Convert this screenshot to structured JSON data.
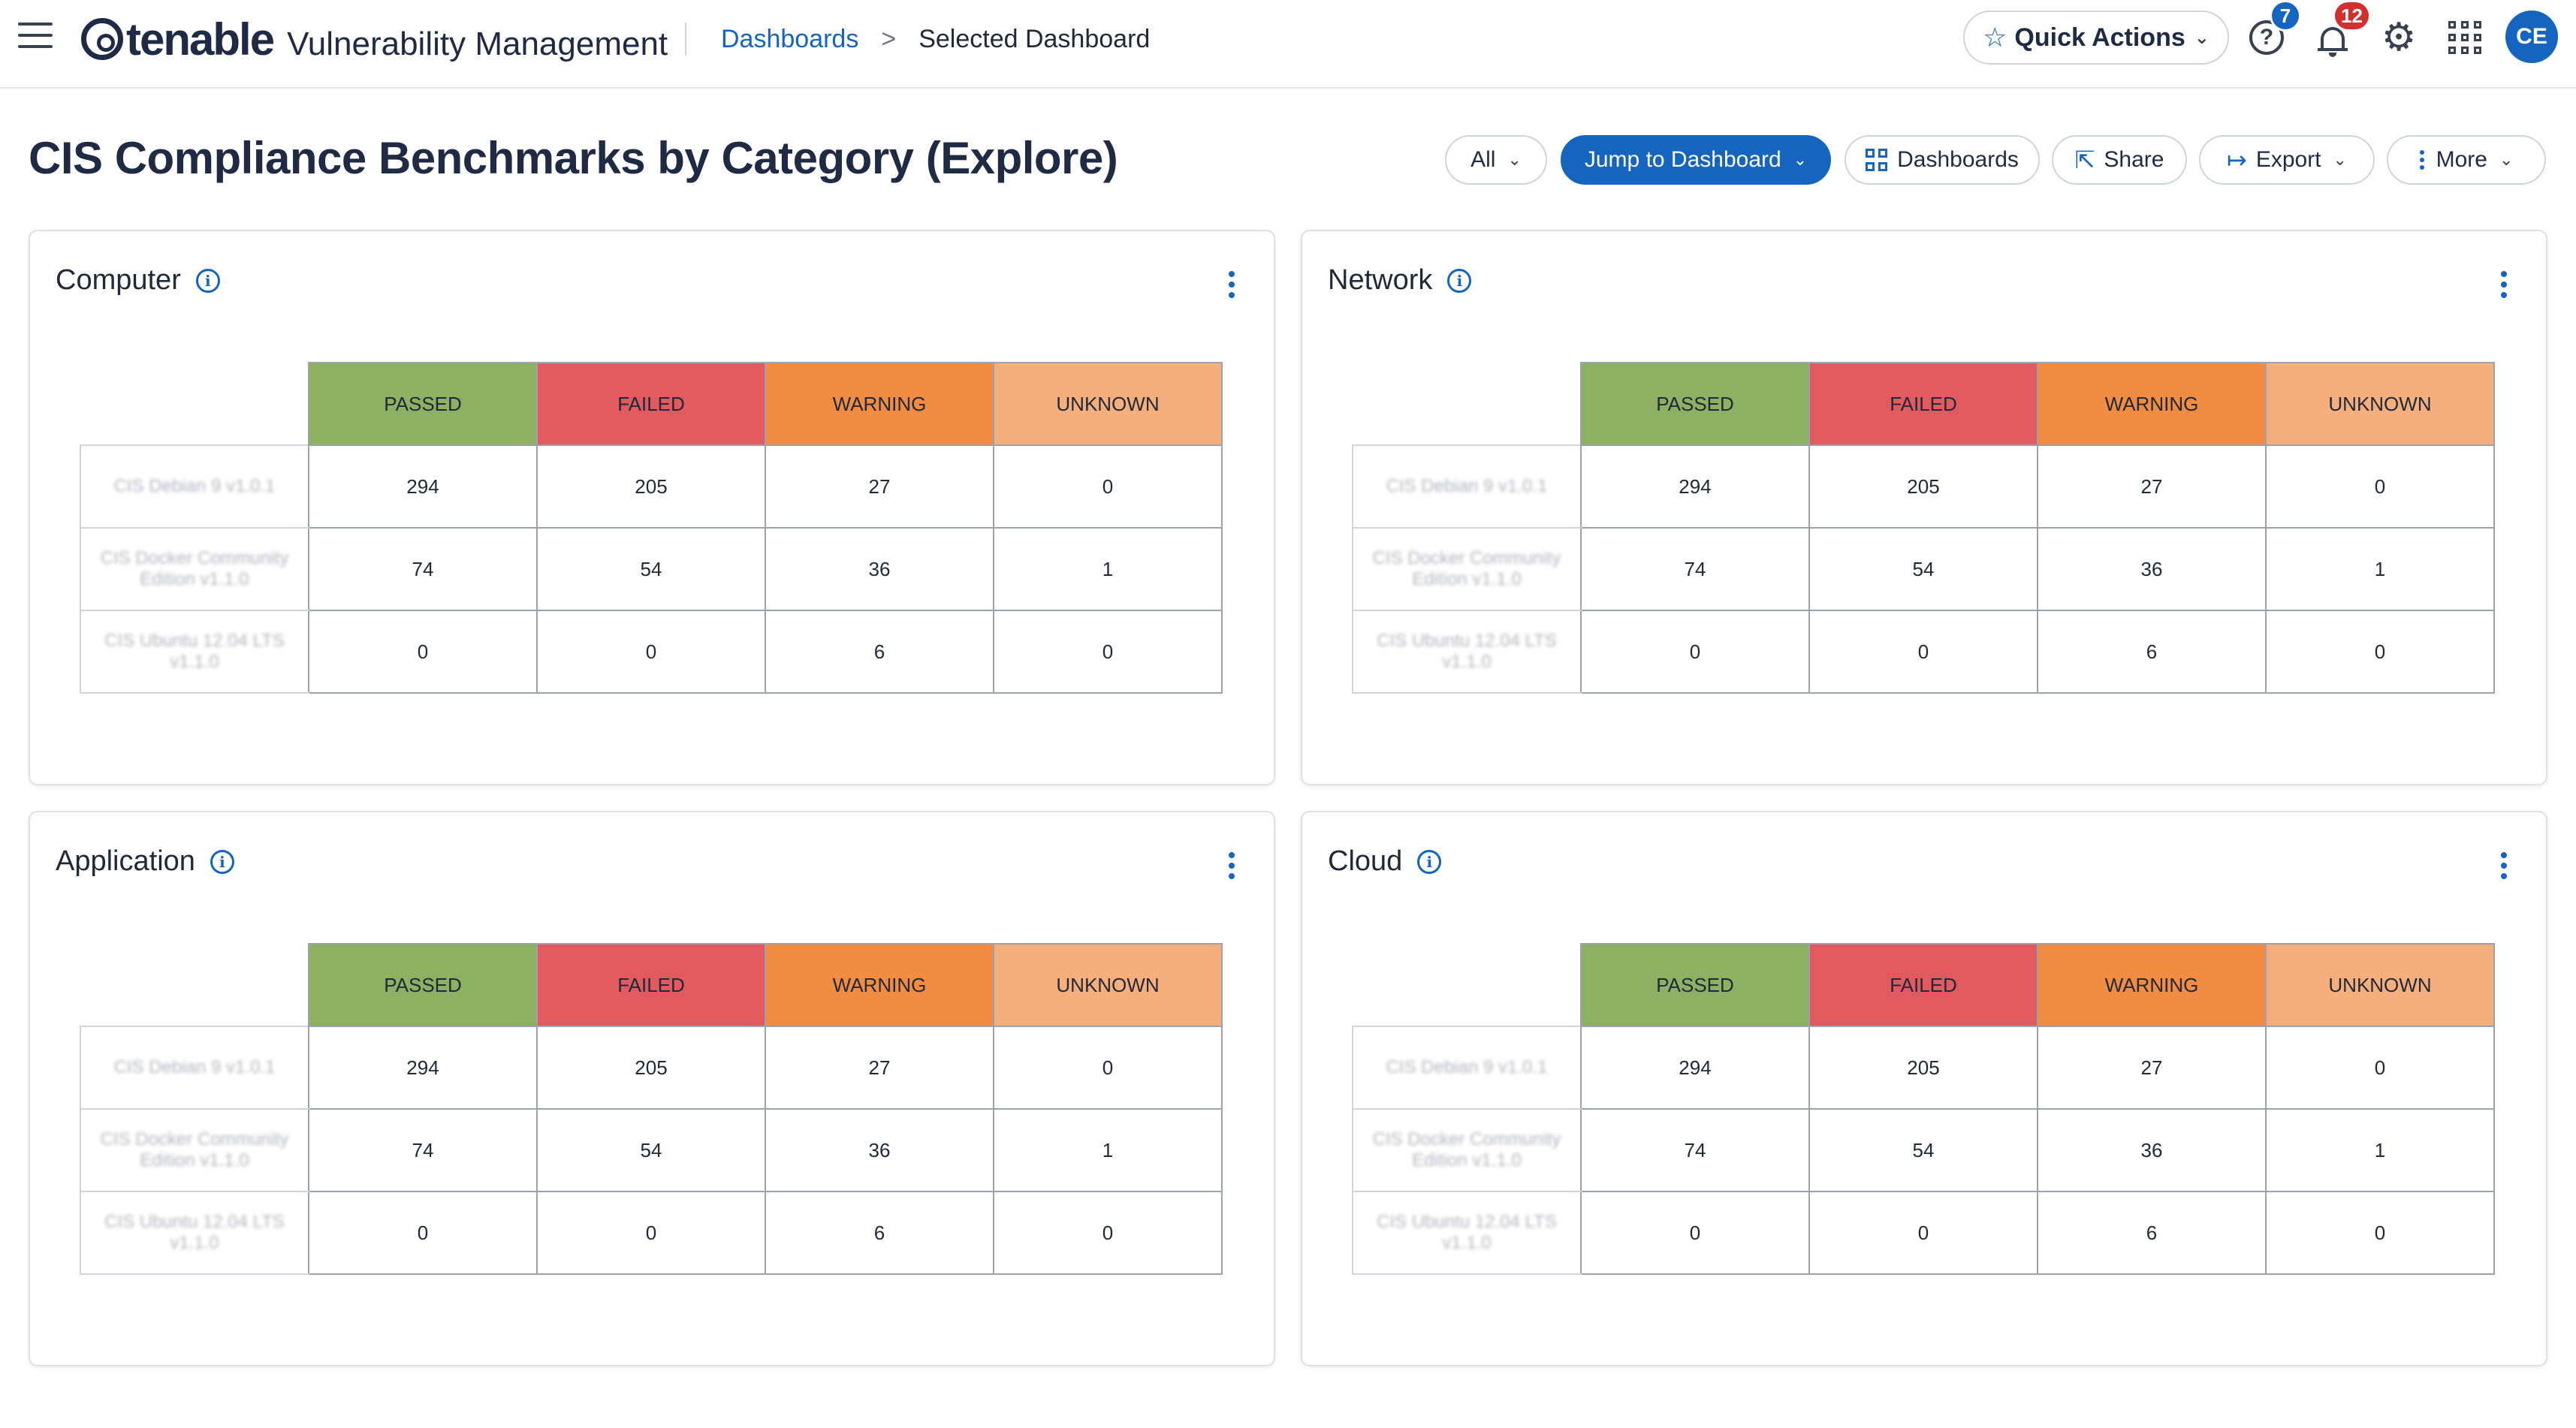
{
  "nav": {
    "product": "Vulnerability Management",
    "logo_text": "tenable",
    "breadcrumb": {
      "parent": "Dashboards",
      "separator": ">",
      "current": "Selected Dashboard"
    },
    "quick_actions_label": "Quick Actions",
    "help_badge": "7",
    "notifications_badge": "12",
    "avatar_initials": "CE"
  },
  "header": {
    "title": "CIS Compliance Benchmarks by Category (Explore)",
    "filter_label": "All",
    "jump_label": "Jump to Dashboard",
    "dashboards_label": "Dashboards",
    "share_label": "Share",
    "export_label": "Export",
    "more_label": "More"
  },
  "colors": {
    "passed": "#8db163",
    "failed": "#e05a5f",
    "warning": "#f28c43",
    "unknown": "#f5ae7c",
    "accent": "#1565c0"
  },
  "columns": [
    "PASSED",
    "FAILED",
    "WARNING",
    "UNKNOWN"
  ],
  "widgets": [
    {
      "title": "Computer",
      "rows": [
        {
          "label": "CIS Debian 9 v1.0.1",
          "values": [
            "294",
            "205",
            "27",
            "0"
          ]
        },
        {
          "label": "CIS Docker Community Edition v1.1.0",
          "values": [
            "74",
            "54",
            "36",
            "1"
          ]
        },
        {
          "label": "CIS Ubuntu 12.04 LTS v1.1.0",
          "values": [
            "0",
            "0",
            "6",
            "0"
          ]
        }
      ]
    },
    {
      "title": "Network",
      "rows": [
        {
          "label": "CIS Debian 9 v1.0.1",
          "values": [
            "294",
            "205",
            "27",
            "0"
          ]
        },
        {
          "label": "CIS Docker Community Edition v1.1.0",
          "values": [
            "74",
            "54",
            "36",
            "1"
          ]
        },
        {
          "label": "CIS Ubuntu 12.04 LTS v1.1.0",
          "values": [
            "0",
            "0",
            "6",
            "0"
          ]
        }
      ]
    },
    {
      "title": "Application",
      "rows": [
        {
          "label": "CIS Debian 9 v1.0.1",
          "values": [
            "294",
            "205",
            "27",
            "0"
          ]
        },
        {
          "label": "CIS Docker Community Edition v1.1.0",
          "values": [
            "74",
            "54",
            "36",
            "1"
          ]
        },
        {
          "label": "CIS Ubuntu 12.04 LTS v1.1.0",
          "values": [
            "0",
            "0",
            "6",
            "0"
          ]
        }
      ]
    },
    {
      "title": "Cloud",
      "rows": [
        {
          "label": "CIS Debian 9 v1.0.1",
          "values": [
            "294",
            "205",
            "27",
            "0"
          ]
        },
        {
          "label": "CIS Docker Community Edition v1.1.0",
          "values": [
            "74",
            "54",
            "36",
            "1"
          ]
        },
        {
          "label": "CIS Ubuntu 12.04 LTS v1.1.0",
          "values": [
            "0",
            "0",
            "6",
            "0"
          ]
        }
      ]
    }
  ]
}
